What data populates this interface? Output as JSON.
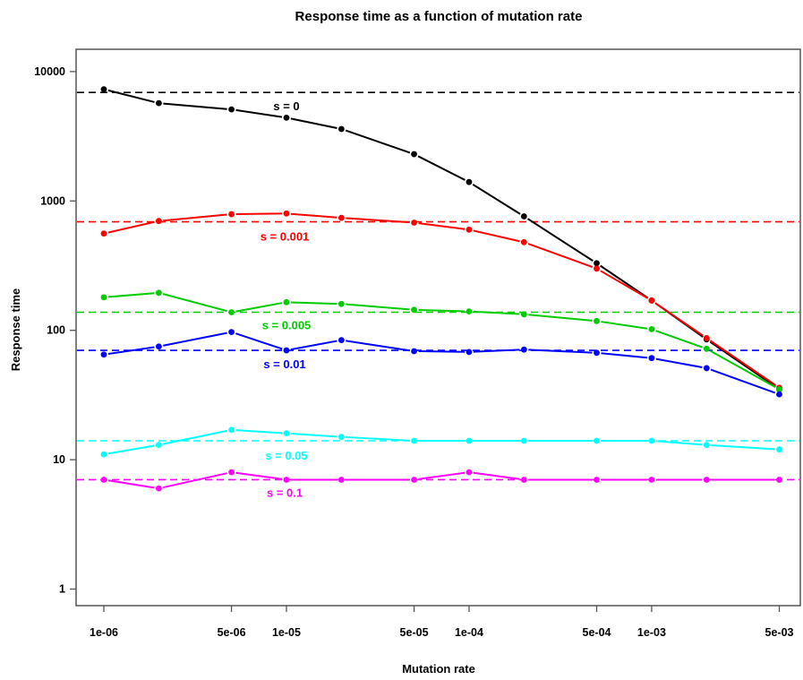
{
  "chart_data": {
    "type": "line",
    "title": "Response time as a function of mutation rate",
    "xlabel": "Mutation rate",
    "ylabel": "Response time",
    "x_scale": "log",
    "y_scale": "log",
    "xlim": [
      7.5e-07,
      0.0065
    ],
    "ylim": [
      0.8,
      15000
    ],
    "x_ticks": [
      {
        "value": 1e-06,
        "label": "1e-06"
      },
      {
        "value": 5e-06,
        "label": "5e-06"
      },
      {
        "value": 1e-05,
        "label": "1e-05"
      },
      {
        "value": 5e-05,
        "label": "5e-05"
      },
      {
        "value": 0.0001,
        "label": "1e-04"
      },
      {
        "value": 0.0005,
        "label": "5e-04"
      },
      {
        "value": 0.001,
        "label": "1e-03"
      },
      {
        "value": 0.005,
        "label": "5e-03"
      }
    ],
    "y_ticks": [
      {
        "value": 1,
        "label": "1"
      },
      {
        "value": 10,
        "label": "10"
      },
      {
        "value": 100,
        "label": "100"
      },
      {
        "value": 1000,
        "label": "1000"
      },
      {
        "value": 10000,
        "label": "10000"
      }
    ],
    "grid": false,
    "x": [
      1e-06,
      2e-06,
      5e-06,
      1e-05,
      2e-05,
      5e-05,
      0.0001,
      0.0002,
      0.0005,
      0.001,
      0.002,
      0.005
    ],
    "series": [
      {
        "name": "s = 0",
        "color": "#000000",
        "reference": 6900,
        "values": [
          7300,
          5700,
          5100,
          4400,
          3600,
          2300,
          1400,
          760,
          330,
          170,
          85,
          35
        ]
      },
      {
        "name": "s = 0.001",
        "color": "#ff0000",
        "reference": 690,
        "values": [
          560,
          700,
          790,
          800,
          740,
          680,
          600,
          480,
          300,
          170,
          87,
          36
        ]
      },
      {
        "name": "s = 0.005",
        "color": "#00cc00",
        "reference": 138,
        "values": [
          180,
          195,
          138,
          165,
          160,
          144,
          140,
          133,
          118,
          102,
          72,
          35
        ]
      },
      {
        "name": "s = 0.01",
        "color": "#0000ff",
        "reference": 70,
        "values": [
          65,
          75,
          97,
          70,
          84,
          69,
          68,
          71,
          67,
          61,
          51,
          32
        ]
      },
      {
        "name": "s = 0.05",
        "color": "#00ffff",
        "reference": 14,
        "values": [
          11,
          13,
          17,
          16,
          15,
          14,
          14,
          14,
          14,
          14,
          13,
          12
        ]
      },
      {
        "name": "s = 0.1",
        "color": "#ff00ff",
        "reference": 7,
        "values": [
          7,
          6,
          8,
          7,
          7,
          7,
          8,
          7,
          7,
          7,
          7,
          7
        ]
      }
    ]
  }
}
